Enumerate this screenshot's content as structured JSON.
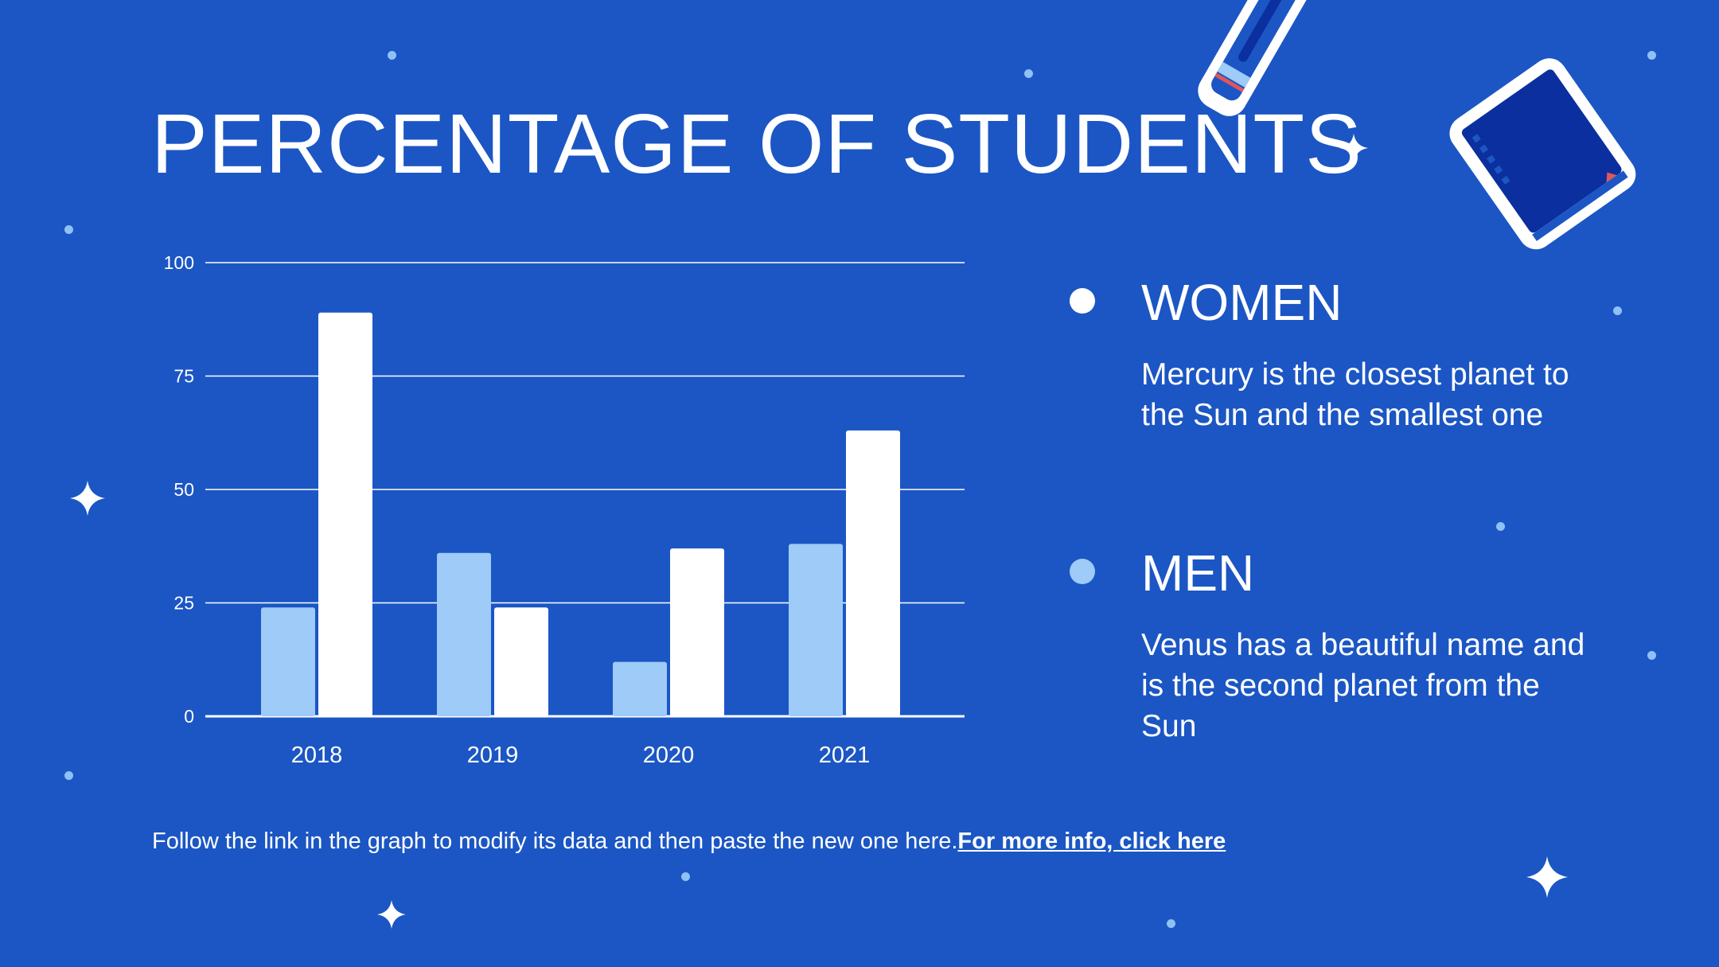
{
  "title": "PERCENTAGE OF STUDENTS",
  "legend": [
    {
      "name": "WOMEN",
      "color": "#ffffff",
      "description": "Mercury is the closest planet to the Sun and the smallest one"
    },
    {
      "name": "MEN",
      "color": "#9ecbf7",
      "description": "Venus has a beautiful name and is the second planet from the Sun"
    }
  ],
  "footer": {
    "text": "Follow the link in the graph to modify its data and then paste the new one here.",
    "link_label": "For more info, click here"
  },
  "chart_data": {
    "type": "bar",
    "title": "",
    "xlabel": "",
    "ylabel": "",
    "categories": [
      "2018",
      "2019",
      "2020",
      "2021"
    ],
    "ylim": [
      0,
      100
    ],
    "yticks": [
      0,
      25,
      50,
      75,
      100
    ],
    "grid": true,
    "series": [
      {
        "name": "MEN",
        "color": "#9ecbf7",
        "values": [
          24,
          36,
          12,
          38
        ]
      },
      {
        "name": "WOMEN",
        "color": "#ffffff",
        "values": [
          89,
          24,
          37,
          63
        ]
      }
    ]
  },
  "colors": {
    "background": "#1b56c4",
    "accent_light": "#9ecbf7",
    "dark_blue": "#0b2f9e"
  }
}
